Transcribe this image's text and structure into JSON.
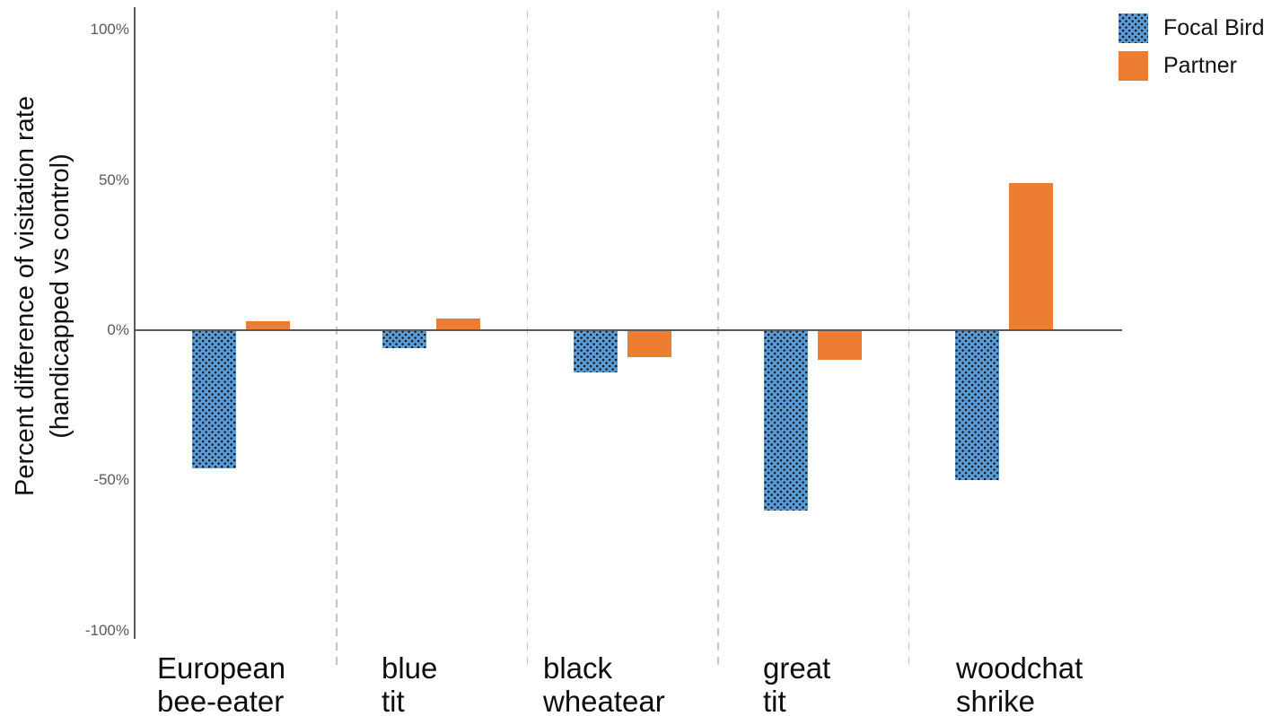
{
  "chart_data": {
    "type": "bar",
    "title": "",
    "ylabel": "Percent difference of visitation rate\n(handicapped vs control)",
    "categories": [
      "European\nbee-eater",
      "blue\ntit",
      "black\nwheatear",
      "great\ntit",
      "woodchat\nshrike"
    ],
    "series": [
      {
        "name": "Focal Bird",
        "values": [
          -46,
          -6,
          -14,
          -60,
          -50
        ],
        "color": "#5b9bd5",
        "fill_pattern": "dotted-diamond",
        "pattern_dot_color": "#10141d"
      },
      {
        "name": "Partner",
        "values": [
          3,
          4,
          -9,
          -10,
          49
        ],
        "color": "#ed7d31",
        "fill_pattern": "solid"
      }
    ],
    "unit": "%",
    "y_ticks": [
      {
        "label": "100%",
        "value": 100
      },
      {
        "label": "50%",
        "value": 50
      },
      {
        "label": "0%",
        "value": 0
      },
      {
        "label": "-50%",
        "value": -50
      },
      {
        "label": "-100%",
        "value": -100
      }
    ],
    "ylim": [
      -100,
      100
    ],
    "grid": "vertical-dashed-category-separators",
    "legend_position": "top-right",
    "colors": {
      "axis": "#595959",
      "separator": "#c6c6c6",
      "tick_label": "#595959",
      "text": "#111111"
    }
  }
}
